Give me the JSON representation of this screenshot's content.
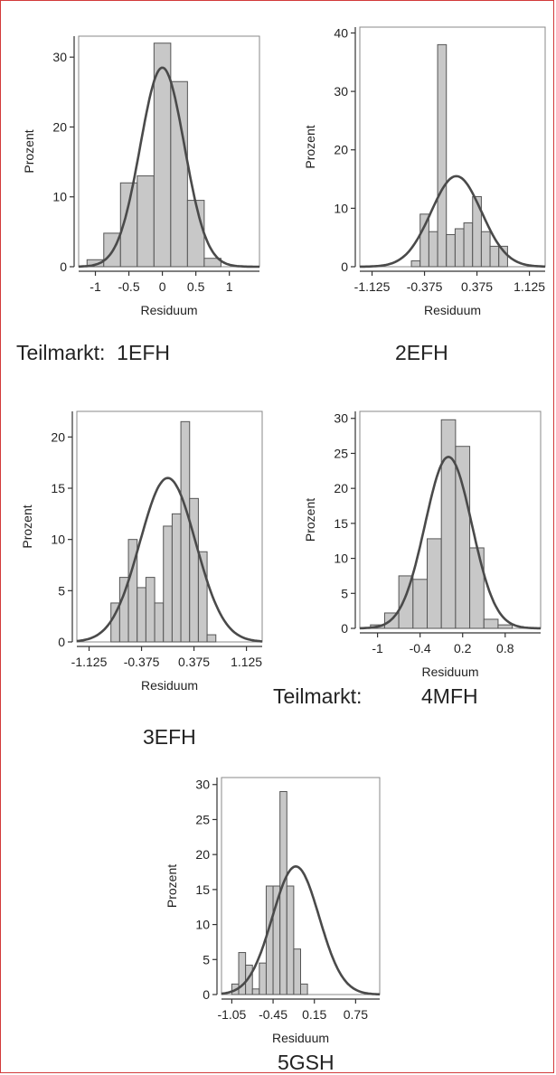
{
  "chart_data": [
    {
      "type": "bar",
      "panel": "1EFH",
      "xlabel": "Residuum",
      "ylabel": "Prozent",
      "xticks": [
        "-1",
        "-0.5",
        "0",
        "0.5",
        "1"
      ],
      "yticks": [
        "0",
        "10",
        "20",
        "30"
      ],
      "xlim": [
        -1.25,
        1.45
      ],
      "ylim": [
        0,
        33
      ],
      "bins": [
        {
          "x0": -1.125,
          "x1": -0.875,
          "y": 1
        },
        {
          "x0": -0.875,
          "x1": -0.625,
          "y": 4.8
        },
        {
          "x0": -0.625,
          "x1": -0.375,
          "y": 12
        },
        {
          "x0": -0.375,
          "x1": -0.125,
          "y": 13
        },
        {
          "x0": -0.125,
          "x1": 0.125,
          "y": 32
        },
        {
          "x0": 0.125,
          "x1": 0.375,
          "y": 26.5
        },
        {
          "x0": 0.375,
          "x1": 0.625,
          "y": 9.5
        },
        {
          "x0": 0.625,
          "x1": 0.875,
          "y": 1.2
        }
      ],
      "fit": {
        "mean": 0,
        "sd": 0.33,
        "peak": 28.5
      }
    },
    {
      "type": "bar",
      "panel": "2EFH",
      "xlabel": "Residuum",
      "ylabel": "Prozent",
      "xticks": [
        "-1.125",
        "-0.375",
        "0.375",
        "1.125"
      ],
      "yticks": [
        "0",
        "10",
        "20",
        "30",
        "40"
      ],
      "xlim": [
        -1.3,
        1.35
      ],
      "ylim": [
        0,
        41
      ],
      "bins": [
        {
          "x0": -0.5625,
          "x1": -0.4375,
          "y": 1
        },
        {
          "x0": -0.4375,
          "x1": -0.3125,
          "y": 9
        },
        {
          "x0": -0.3125,
          "x1": -0.1875,
          "y": 6
        },
        {
          "x0": -0.1875,
          "x1": -0.0625,
          "y": 38
        },
        {
          "x0": -0.0625,
          "x1": 0.0625,
          "y": 5.5
        },
        {
          "x0": 0.0625,
          "x1": 0.1875,
          "y": 6.5
        },
        {
          "x0": 0.1875,
          "x1": 0.3125,
          "y": 7.5
        },
        {
          "x0": 0.3125,
          "x1": 0.4375,
          "y": 12
        },
        {
          "x0": 0.4375,
          "x1": 0.5625,
          "y": 6
        },
        {
          "x0": 0.5625,
          "x1": 0.6875,
          "y": 3.5
        },
        {
          "x0": 0.6875,
          "x1": 0.8125,
          "y": 3.5
        }
      ],
      "fit": {
        "mean": 0.08,
        "sd": 0.36,
        "peak": 15.5
      }
    },
    {
      "type": "bar",
      "panel": "3EFH",
      "xlabel": "Residuum",
      "ylabel": "Prozent",
      "xticks": [
        "-1.125",
        "-0.375",
        "0.375",
        "1.125"
      ],
      "yticks": [
        "0",
        "5",
        "10",
        "15",
        "20"
      ],
      "xlim": [
        -1.3,
        1.35
      ],
      "ylim": [
        0,
        22.5
      ],
      "bins": [
        {
          "x0": -0.8125,
          "x1": -0.6875,
          "y": 3.8
        },
        {
          "x0": -0.6875,
          "x1": -0.5625,
          "y": 6.3
        },
        {
          "x0": -0.5625,
          "x1": -0.4375,
          "y": 10
        },
        {
          "x0": -0.4375,
          "x1": -0.3125,
          "y": 5.3
        },
        {
          "x0": -0.3125,
          "x1": -0.1875,
          "y": 6.3
        },
        {
          "x0": -0.1875,
          "x1": -0.0625,
          "y": 3.8
        },
        {
          "x0": -0.0625,
          "x1": 0.0625,
          "y": 11.3
        },
        {
          "x0": 0.0625,
          "x1": 0.1875,
          "y": 12.5
        },
        {
          "x0": 0.1875,
          "x1": 0.3125,
          "y": 21.5
        },
        {
          "x0": 0.3125,
          "x1": 0.4375,
          "y": 14
        },
        {
          "x0": 0.4375,
          "x1": 0.5625,
          "y": 8.8
        },
        {
          "x0": 0.5625,
          "x1": 0.6875,
          "y": 0.7
        }
      ],
      "fit": {
        "mean": 0.0,
        "sd": 0.4,
        "peak": 16
      }
    },
    {
      "type": "bar",
      "panel": "4MFH",
      "xlabel": "Residuum",
      "ylabel": "Prozent",
      "xticks": [
        "-1",
        "-0.4",
        "0.2",
        "0.8"
      ],
      "yticks": [
        "0",
        "5",
        "10",
        "15",
        "20",
        "25",
        "30"
      ],
      "xlim": [
        -1.25,
        1.3
      ],
      "ylim": [
        0,
        31
      ],
      "bins": [
        {
          "x0": -1.1,
          "x1": -0.9,
          "y": 0.5
        },
        {
          "x0": -0.9,
          "x1": -0.7,
          "y": 2.2
        },
        {
          "x0": -0.7,
          "x1": -0.5,
          "y": 7.5
        },
        {
          "x0": -0.5,
          "x1": -0.3,
          "y": 7
        },
        {
          "x0": -0.3,
          "x1": -0.1,
          "y": 12.8
        },
        {
          "x0": -0.1,
          "x1": 0.1,
          "y": 29.8
        },
        {
          "x0": 0.1,
          "x1": 0.3,
          "y": 26
        },
        {
          "x0": 0.3,
          "x1": 0.5,
          "y": 11.5
        },
        {
          "x0": 0.5,
          "x1": 0.7,
          "y": 1.3
        },
        {
          "x0": 0.7,
          "x1": 0.9,
          "y": 0.5
        }
      ],
      "fit": {
        "mean": 0.0,
        "sd": 0.33,
        "peak": 24.5
      }
    },
    {
      "type": "bar",
      "panel": "5GSH",
      "xlabel": "Residuum",
      "ylabel": "Prozent",
      "xticks": [
        "-1.05",
        "-0.45",
        "0.15",
        "0.75"
      ],
      "yticks": [
        "0",
        "5",
        "10",
        "15",
        "20",
        "25",
        "30"
      ],
      "xlim": [
        -1.2,
        1.1
      ],
      "ylim": [
        0,
        31
      ],
      "bins": [
        {
          "x0": -1.05,
          "x1": -0.95,
          "y": 1.5
        },
        {
          "x0": -0.95,
          "x1": -0.85,
          "y": 6
        },
        {
          "x0": -0.85,
          "x1": -0.75,
          "y": 4.2
        },
        {
          "x0": -0.75,
          "x1": -0.65,
          "y": 0.8
        },
        {
          "x0": -0.65,
          "x1": -0.55,
          "y": 4.5
        },
        {
          "x0": -0.55,
          "x1": -0.45,
          "y": 15.5
        },
        {
          "x0": -0.45,
          "x1": -0.35,
          "y": 15.5
        },
        {
          "x0": -0.35,
          "x1": -0.25,
          "y": 29
        },
        {
          "x0": -0.25,
          "x1": -0.15,
          "y": 15.5
        },
        {
          "x0": -0.15,
          "x1": -0.05,
          "y": 6.5
        },
        {
          "x0": -0.05,
          "x1": 0.05,
          "y": 1.5
        }
      ],
      "fit": {
        "mean": -0.12,
        "sd": 0.34,
        "peak": 18.3
      }
    }
  ],
  "captions": {
    "c1": "Teilmarkt:  1EFH",
    "c2": "2EFH",
    "c3": "3EFH",
    "c4_label": "Teilmarkt:",
    "c4": "4MFH",
    "c5": "5GSH"
  },
  "colors": {
    "bar_fill": "#c8c8c8",
    "bar_stroke": "#555555",
    "curve": "#4a4a4a",
    "axis": "#333333",
    "frame_border": "#d23a3a"
  }
}
